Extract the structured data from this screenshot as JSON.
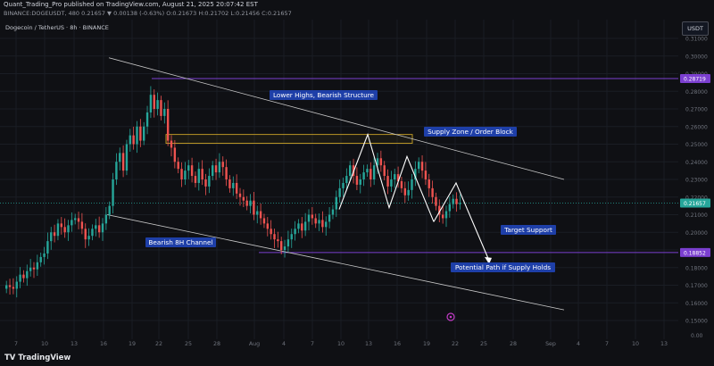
{
  "header": {
    "line1": "Quant_Trading_Pro published on TradingView.com, August 21, 2025 20:07:42 EST",
    "line2": "BINANCE:DOGEUSDT, 480  0.21657 ▼ 0.00138 (-0.63%)  O:0.21673 H:0.21702 L:0.21456 C:0.21657"
  },
  "symbol_label": "Dogecoin / TetherUS · 8h · BINANCE",
  "currency_button": "USDT",
  "price_axis": {
    "ticks": [
      "0.31000",
      "0.30000",
      "0.29000",
      "0.28000",
      "0.27000",
      "0.26000",
      "0.25000",
      "0.24000",
      "0.23000",
      "0.22000",
      "0.21000",
      "0.20000",
      "0.19000",
      "0.18000",
      "0.17000",
      "0.16000",
      "0.15000"
    ],
    "bottom_label": "0.00",
    "markers": [
      {
        "label": "0.28719",
        "color": "#7b3fd0"
      },
      {
        "label": "0.21657",
        "color": "#26a69a"
      },
      {
        "label": "0.18852",
        "color": "#7b3fd0"
      }
    ]
  },
  "time_axis": [
    "7",
    "10",
    "13",
    "16",
    "19",
    "22",
    "25",
    "28",
    "Aug",
    "4",
    "7",
    "10",
    "13",
    "16",
    "19",
    "22",
    "25",
    "28",
    "Sep",
    "4",
    "7",
    "10",
    "13"
  ],
  "annotations": {
    "lower_highs": "Lower Highs, Bearish Structure",
    "supply_zone": "Supply Zone / Order Block",
    "channel": "Bearish 8H Channel",
    "target": "Target Support",
    "path": "Potential Path if Supply Holds"
  },
  "colors": {
    "background": "#0f1014",
    "up": "#26a69a",
    "down": "#ef5350",
    "level": "#7b3fd0",
    "label_bg": "#1e3fa8",
    "zone": "#c9a227"
  },
  "chart_data": {
    "type": "candlestick",
    "interval": "8h",
    "ylim": [
      0.15,
      0.31
    ],
    "levels": [
      0.28719,
      0.21657,
      0.18852
    ],
    "supply_zone": [
      0.2505,
      0.2555
    ],
    "close_path": [
      0.17,
      0.169,
      0.168,
      0.172,
      0.176,
      0.174,
      0.178,
      0.18,
      0.179,
      0.183,
      0.186,
      0.188,
      0.195,
      0.2,
      0.198,
      0.205,
      0.203,
      0.2,
      0.204,
      0.207,
      0.208,
      0.206,
      0.202,
      0.196,
      0.198,
      0.202,
      0.204,
      0.2,
      0.205,
      0.21,
      0.215,
      0.23,
      0.24,
      0.245,
      0.235,
      0.25,
      0.255,
      0.25,
      0.26,
      0.252,
      0.26,
      0.268,
      0.278,
      0.27,
      0.275,
      0.266,
      0.27,
      0.252,
      0.248,
      0.24,
      0.236,
      0.23,
      0.235,
      0.238,
      0.232,
      0.228,
      0.236,
      0.23,
      0.226,
      0.232,
      0.238,
      0.234,
      0.24,
      0.237,
      0.23,
      0.225,
      0.228,
      0.222,
      0.22,
      0.218,
      0.215,
      0.218,
      0.21,
      0.212,
      0.208,
      0.205,
      0.202,
      0.199,
      0.196,
      0.195,
      0.19,
      0.192,
      0.196,
      0.199,
      0.202,
      0.205,
      0.201,
      0.206,
      0.21,
      0.208,
      0.205,
      0.207,
      0.203,
      0.206,
      0.21,
      0.213,
      0.22,
      0.225,
      0.228,
      0.232,
      0.238,
      0.232,
      0.227,
      0.23,
      0.234,
      0.236,
      0.23,
      0.238,
      0.242,
      0.238,
      0.232,
      0.226,
      0.23,
      0.233,
      0.229,
      0.225,
      0.221,
      0.224,
      0.23,
      0.236,
      0.24,
      0.235,
      0.23,
      0.225,
      0.22,
      0.215,
      0.21,
      0.208,
      0.212,
      0.216,
      0.219,
      0.216,
      0.2166
    ],
    "channel_upper": [
      [
        0.299
      ],
      [
        0.23
      ]
    ],
    "channel_lower": [
      [
        0.21
      ],
      [
        0.156
      ]
    ],
    "projection": [
      0.206,
      0.228,
      0.184
    ]
  }
}
